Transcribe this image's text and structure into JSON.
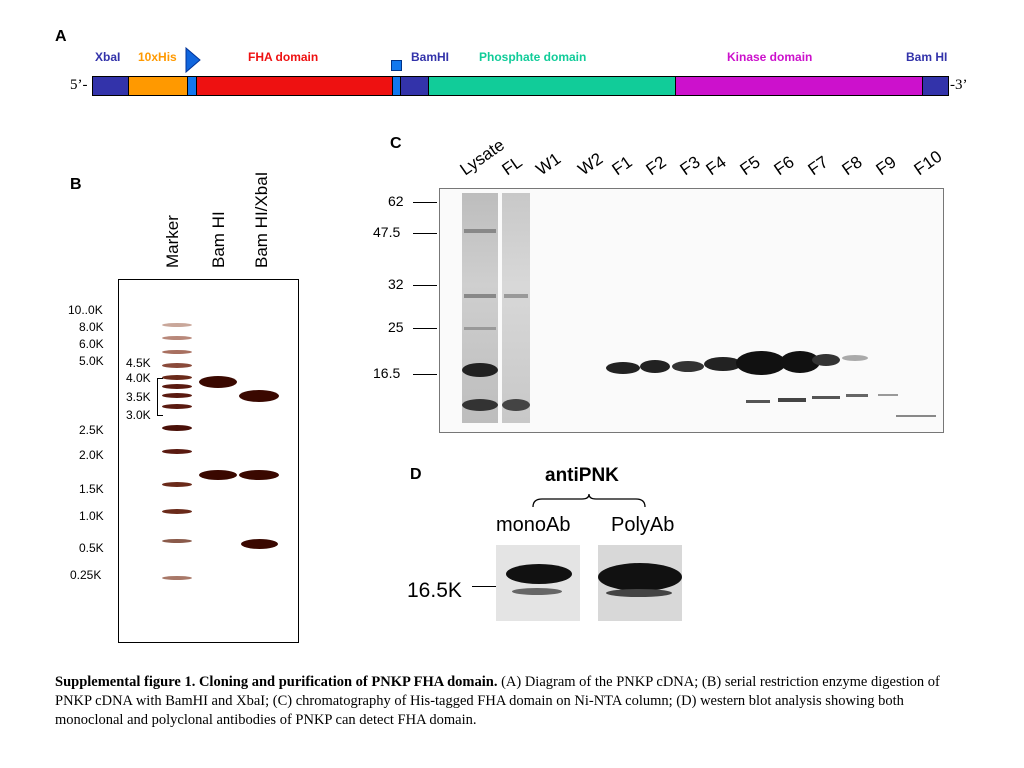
{
  "panelA": {
    "letter": "A",
    "end5": "5’-",
    "end3": "-3’",
    "domains": [
      {
        "label": "XbaI",
        "color": "#3333aa"
      },
      {
        "label": "10xHis",
        "color": "#ff9900"
      },
      {
        "label": "FHA domain",
        "color": "#ee1111"
      },
      {
        "label": "BamHI",
        "color": "#3333aa"
      },
      {
        "label": "Phosphate domain",
        "color": "#11cc99"
      },
      {
        "label": "Kinase domain",
        "color": "#cc11cc"
      },
      {
        "label": "Bam HI",
        "color": "#3333aa"
      }
    ]
  },
  "panelB": {
    "letter": "B",
    "lanes": [
      "Marker",
      "Bam HI",
      "Bam HI/XbaI"
    ],
    "ladder": [
      "10..0K",
      "8.0K",
      "6.0K",
      "5.0K",
      "2.5K",
      "2.0K",
      "1.5K",
      "1.0K",
      "0.5K",
      "0.25K"
    ],
    "bracket_labels": [
      "4.5K",
      "4.0K",
      "3.5K",
      "3.0K"
    ]
  },
  "panelC": {
    "letter": "C",
    "lanes": [
      "Lysate",
      "FL",
      "W1",
      "W2",
      "F1",
      "F2",
      "F3",
      "F4",
      "F5",
      "F6",
      "F7",
      "F8",
      "F9",
      "F10"
    ],
    "markers": [
      "62",
      "47.5",
      "32",
      "25",
      "16.5"
    ]
  },
  "panelD": {
    "letter": "D",
    "title": "antiPNK",
    "blots": [
      "monoAb",
      "PolyAb"
    ],
    "marker": "16.5K"
  },
  "caption": {
    "bold": "Supplemental figure 1. Cloning and purification of PNKP FHA domain.",
    "text": " (A) Diagram of the PNKP cDNA; (B) serial restriction enzyme digestion of PNKP cDNA with BamHI and XbaI; (C) chromatography of His-tagged FHA domain on Ni-NTA column; (D) western blot analysis showing both monoclonal and polyclonal antibodies of PNKP can detect FHA domain."
  }
}
